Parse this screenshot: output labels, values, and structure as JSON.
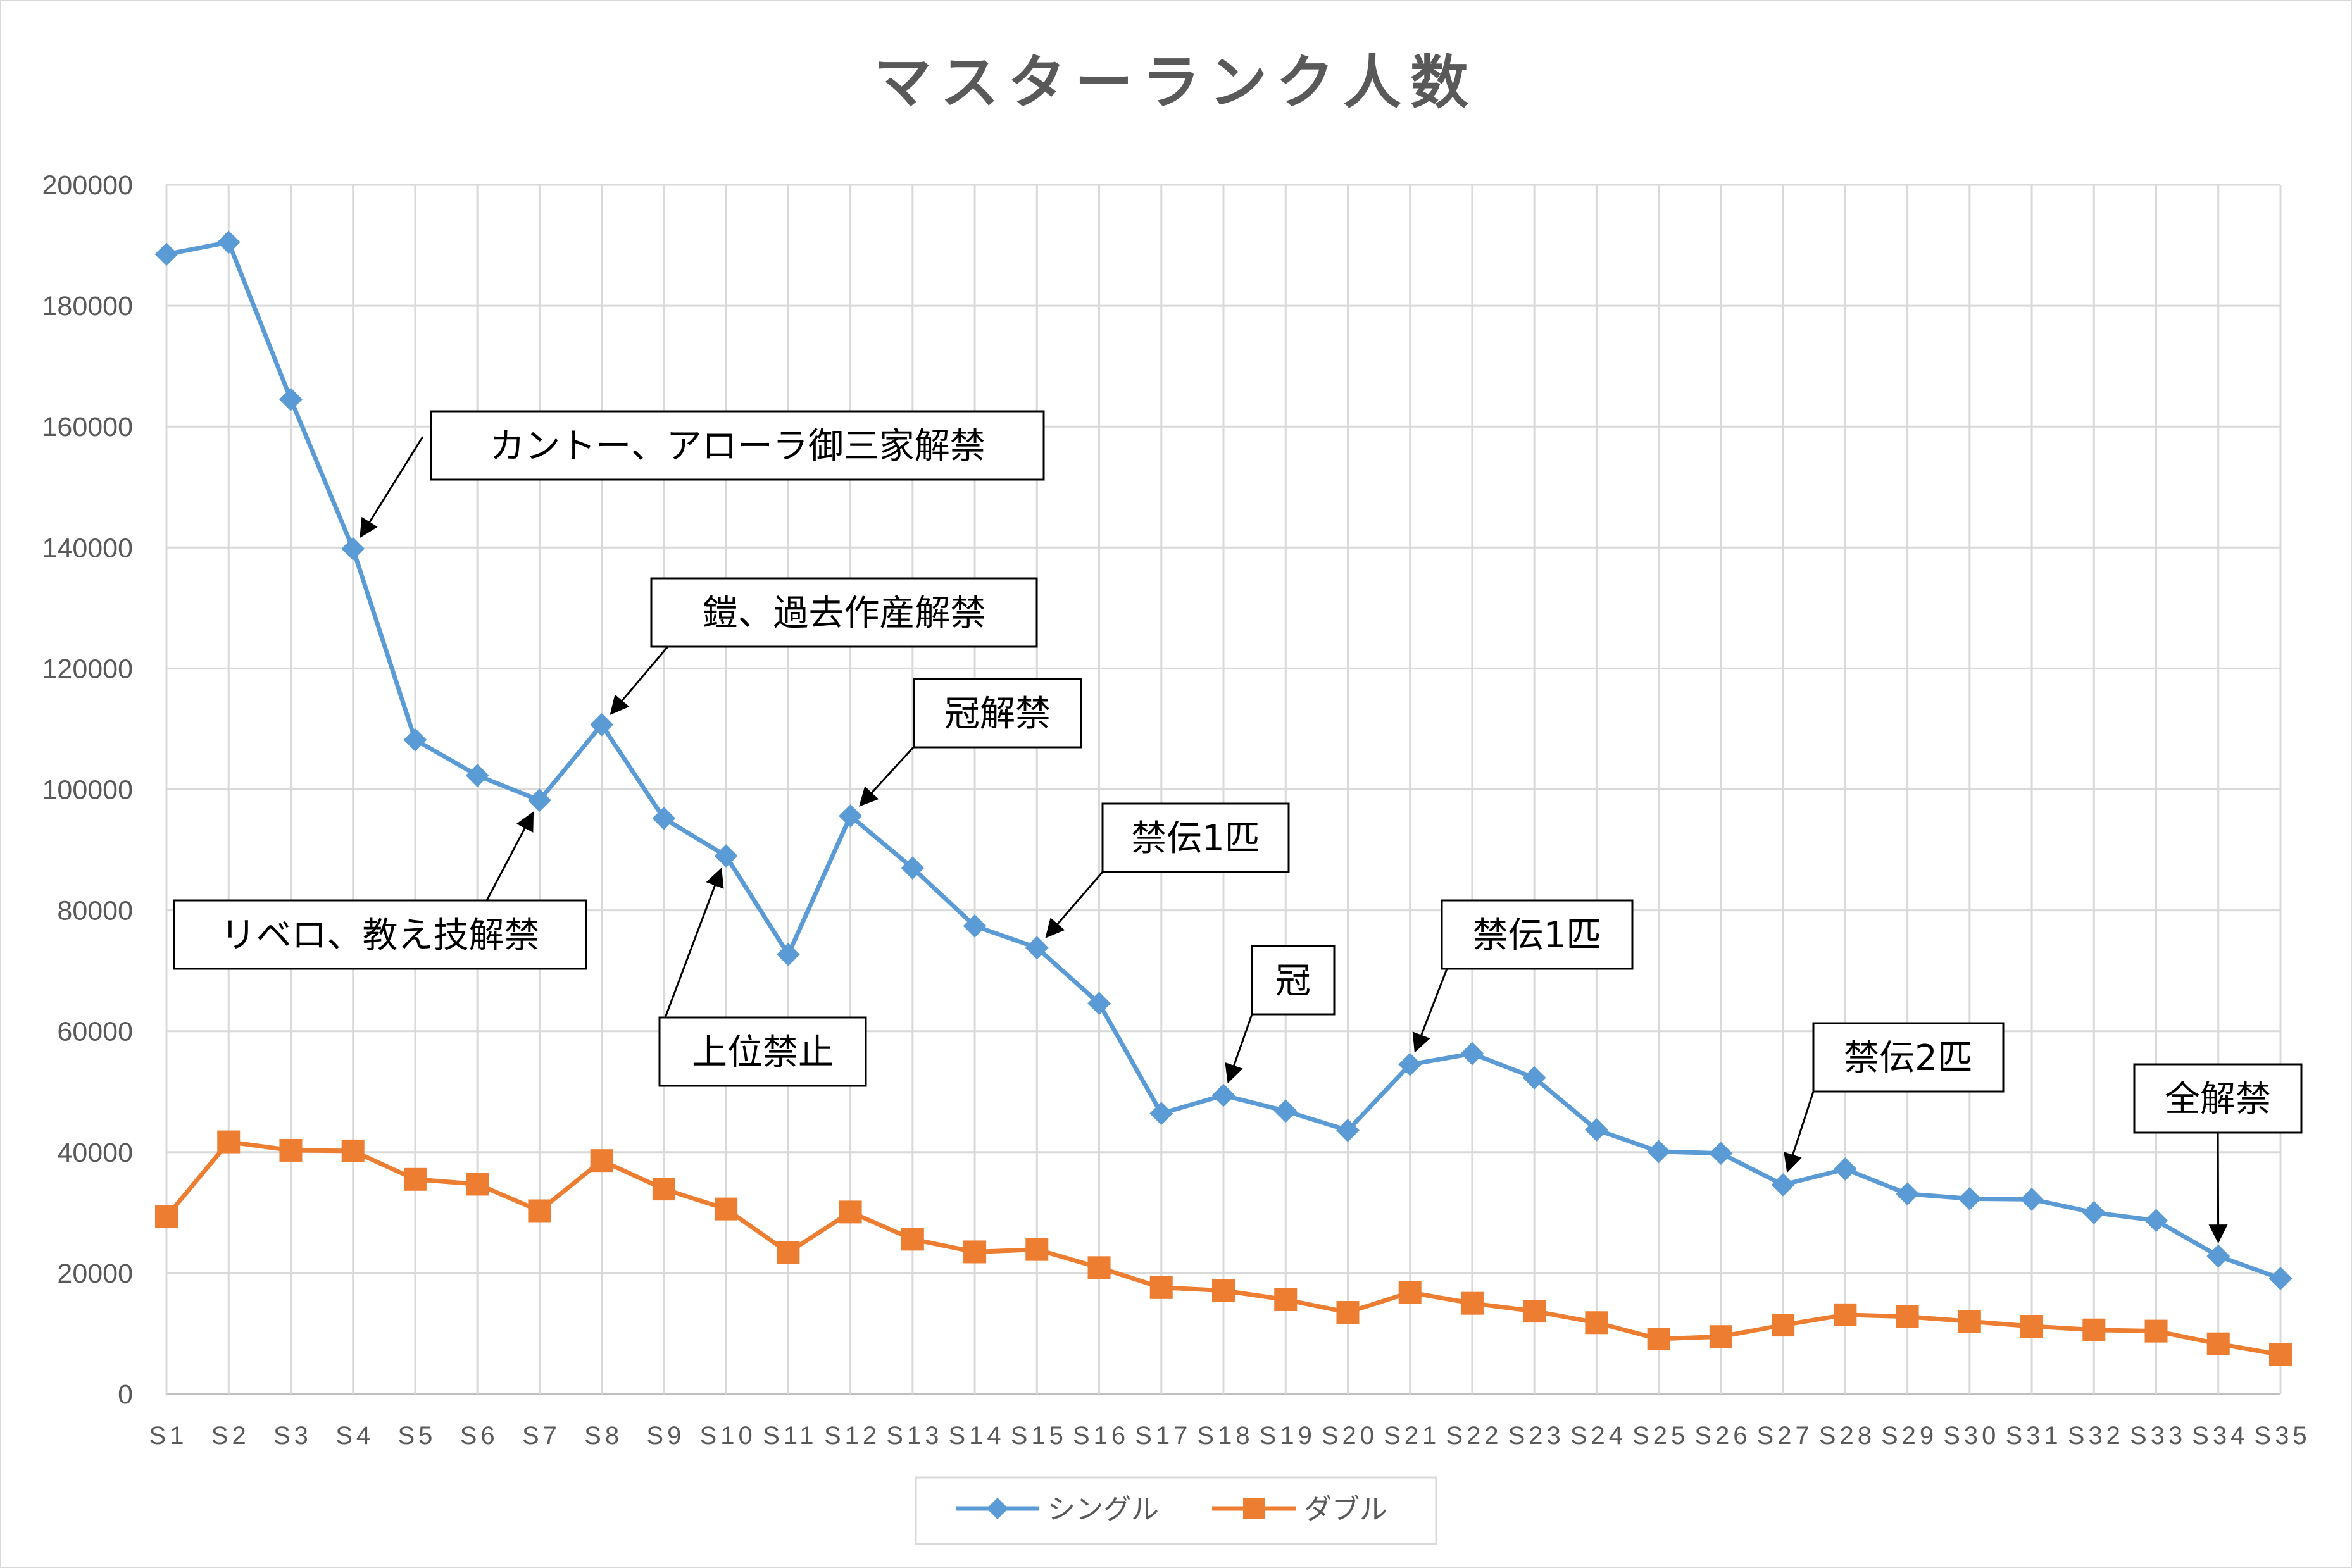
{
  "chart_data": {
    "type": "line",
    "title": "マスターランク人数",
    "categories": [
      "S1",
      "S2",
      "S3",
      "S4",
      "S5",
      "S6",
      "S7",
      "S8",
      "S9",
      "S10",
      "S11",
      "S12",
      "S13",
      "S14",
      "S15",
      "S16",
      "S17",
      "S18",
      "S19",
      "S20",
      "S21",
      "S22",
      "S23",
      "S24",
      "S25",
      "S26",
      "S27",
      "S28",
      "S29",
      "S30",
      "S31",
      "S32",
      "S33",
      "S34",
      "S35"
    ],
    "ylim": [
      0,
      200000
    ],
    "yticks": [
      "0",
      "20000",
      "40000",
      "60000",
      "80000",
      "100000",
      "120000",
      "140000",
      "160000",
      "180000",
      "200000"
    ],
    "grid": true,
    "legend_position": "bottom",
    "series": [
      {
        "name": "シングル",
        "color": "#5b9bd5",
        "marker": "diamond",
        "values": [
          188500,
          190500,
          164500,
          139800,
          108200,
          102300,
          98200,
          110700,
          95200,
          89000,
          72700,
          95600,
          87000,
          77400,
          73800,
          64600,
          46400,
          49400,
          46800,
          43600,
          54500,
          56300,
          52300,
          43700,
          40100,
          39800,
          34600,
          37200,
          33100,
          32300,
          32200,
          30000,
          28700,
          22800,
          19100
        ]
      },
      {
        "name": "ダブル",
        "color": "#ed7d31",
        "marker": "square",
        "values": [
          29300,
          41700,
          40300,
          40200,
          35500,
          34700,
          30300,
          38600,
          33900,
          30600,
          23400,
          30100,
          25600,
          23500,
          23900,
          20900,
          17600,
          17100,
          15600,
          13500,
          16800,
          15000,
          13700,
          11800,
          9100,
          9500,
          11400,
          13100,
          12800,
          12000,
          11200,
          10600,
          10400,
          8300,
          6500
        ]
      }
    ],
    "annotations": [
      {
        "text": "カントー、アローラ御三家解禁",
        "target_index": 3
      },
      {
        "text": "鎧、過去作産解禁",
        "target_index": 7
      },
      {
        "text": "冠解禁",
        "target_index": 11
      },
      {
        "text": "リベロ、教え技解禁",
        "target_index": 6
      },
      {
        "text": "上位禁止",
        "target_index": 9
      },
      {
        "text": "禁伝1匹",
        "target_index": 14
      },
      {
        "text": "冠",
        "target_index": 17
      },
      {
        "text": "禁伝1匹",
        "target_index": 20
      },
      {
        "text": "禁伝2匹",
        "target_index": 26
      },
      {
        "text": "全解禁",
        "target_index": 33
      }
    ]
  }
}
